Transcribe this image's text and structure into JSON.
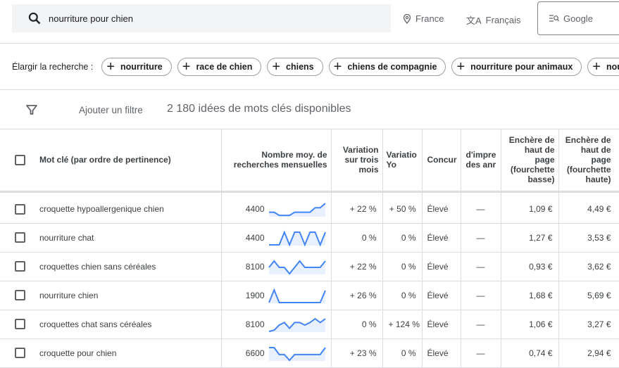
{
  "search": {
    "query": "nourriture pour chien",
    "location": "France",
    "language": "Français",
    "network": "Google"
  },
  "broaden": {
    "label": "Élargir la recherche :",
    "chips": [
      "nourriture",
      "race de chien",
      "chiens",
      "chiens de compagnie",
      "nourriture pour animaux",
      "nou"
    ]
  },
  "filter": {
    "add_label": "Ajouter un filtre",
    "count_label": "2 180 idées de mots clés disponibles"
  },
  "colors": {
    "sparkline": "#4285f4",
    "sparkline_fill": "#e8f0fe"
  },
  "table": {
    "headers": [
      "Mot clé (par ordre de pertinence)",
      "Nombre moy. de recherches mensuelles",
      "Variation sur trois mois",
      "Variatio Yo",
      "Concur",
      "d'impre des anr",
      "Enchère de haut de page (fourchette basse)",
      "Enchère de haut de page (fourchette haute)"
    ],
    "rows": [
      {
        "keyword": "croquette hypoallergenique chien",
        "volume": "4400",
        "trend": [
          30,
          30,
          5,
          5,
          5,
          30,
          30,
          30,
          30,
          65,
          65,
          100
        ],
        "three_month": "+ 22 %",
        "yoy": "+ 50 %",
        "competition": "Élevé",
        "impression": "—",
        "bid_low": "1,09 €",
        "bid_high": "4,49 €"
      },
      {
        "keyword": "nourriture chat",
        "volume": "4400",
        "trend": [
          0,
          0,
          0,
          100,
          0,
          100,
          100,
          0,
          100,
          100,
          0,
          100
        ],
        "three_month": "0 %",
        "yoy": "0 %",
        "competition": "Élevé",
        "impression": "—",
        "bid_low": "1,27 €",
        "bid_high": "3,53 €"
      },
      {
        "keyword": "croquettes chien sans céréales",
        "volume": "8100",
        "trend": [
          50,
          100,
          50,
          50,
          0,
          50,
          100,
          50,
          50,
          50,
          50,
          100
        ],
        "three_month": "+ 22 %",
        "yoy": "0 %",
        "competition": "Élevé",
        "impression": "—",
        "bid_low": "0,93 €",
        "bid_high": "3,62 €"
      },
      {
        "keyword": "nourriture chien",
        "volume": "1900",
        "trend": [
          0,
          100,
          0,
          0,
          0,
          0,
          0,
          0,
          0,
          0,
          0,
          95
        ],
        "three_month": "+ 26 %",
        "yoy": "0 %",
        "competition": "Élevé",
        "impression": "—",
        "bid_low": "1,68 €",
        "bid_high": "5,69 €"
      },
      {
        "keyword": "croquettes chat sans céréales",
        "volume": "8100",
        "trend": [
          0,
          10,
          50,
          70,
          25,
          70,
          70,
          50,
          70,
          100,
          70,
          100
        ],
        "three_month": "0 %",
        "yoy": "+ 124 %",
        "competition": "Élevé",
        "impression": "—",
        "bid_low": "1,06 €",
        "bid_high": "3,27 €"
      },
      {
        "keyword": "croquette pour chien",
        "volume": "6600",
        "trend": [
          100,
          100,
          45,
          45,
          0,
          45,
          45,
          45,
          45,
          45,
          45,
          100
        ],
        "three_month": "+ 23 %",
        "yoy": "0 %",
        "competition": "Élevé",
        "impression": "—",
        "bid_low": "0,74 €",
        "bid_high": "2,94 €"
      }
    ]
  }
}
